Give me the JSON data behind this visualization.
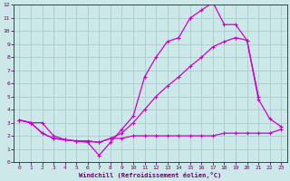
{
  "xlabel": "Windchill (Refroidissement éolien,°C)",
  "bg_color": "#cce8e8",
  "grid_color": "#aacccc",
  "line_color": "#cc00cc",
  "line1_x": [
    0,
    1,
    2,
    3,
    4,
    5,
    6,
    7,
    8,
    9,
    10,
    11,
    12,
    13,
    14,
    15,
    16,
    17,
    18,
    19,
    20,
    21
  ],
  "line1_y": [
    3.2,
    3.0,
    3.0,
    2.0,
    1.7,
    1.6,
    1.5,
    0.5,
    1.5,
    2.5,
    3.5,
    6.5,
    8.0,
    9.2,
    9.5,
    11.0,
    11.6,
    12.2,
    10.5,
    10.5,
    9.3,
    5.0
  ],
  "line2_x": [
    0,
    1,
    2,
    3,
    4,
    5,
    6,
    7,
    8,
    9,
    10,
    11,
    12,
    13,
    14,
    15,
    16,
    17,
    18,
    19,
    20,
    21,
    22,
    23
  ],
  "line2_y": [
    3.2,
    3.0,
    2.2,
    1.8,
    1.7,
    1.6,
    1.6,
    1.5,
    1.8,
    2.2,
    3.0,
    4.0,
    5.0,
    5.8,
    6.5,
    7.3,
    8.0,
    8.8,
    9.2,
    9.5,
    9.3,
    4.8,
    3.3,
    2.7
  ],
  "line3_x": [
    0,
    1,
    2,
    3,
    4,
    5,
    6,
    7,
    8,
    9,
    10,
    11,
    12,
    13,
    14,
    15,
    16,
    17,
    18,
    19,
    20,
    21,
    22,
    23
  ],
  "line3_y": [
    3.2,
    3.0,
    2.2,
    1.8,
    1.7,
    1.6,
    1.6,
    1.5,
    1.8,
    1.8,
    2.0,
    2.0,
    2.0,
    2.0,
    2.0,
    2.0,
    2.0,
    2.0,
    2.2,
    2.2,
    2.2,
    2.2,
    2.2,
    2.5
  ],
  "xlim": [
    -0.5,
    23.5
  ],
  "ylim": [
    0,
    12
  ],
  "xticks": [
    0,
    1,
    2,
    3,
    4,
    5,
    6,
    7,
    8,
    9,
    10,
    11,
    12,
    13,
    14,
    15,
    16,
    17,
    18,
    19,
    20,
    21,
    22,
    23
  ],
  "yticks": [
    0,
    1,
    2,
    3,
    4,
    5,
    6,
    7,
    8,
    9,
    10,
    11,
    12
  ]
}
